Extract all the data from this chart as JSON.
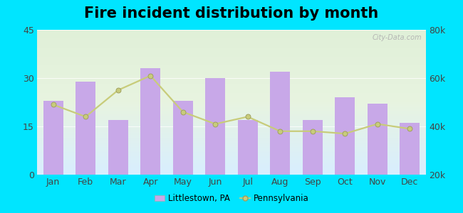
{
  "title": "Fire incident distribution by month",
  "months": [
    "Jan",
    "Feb",
    "Mar",
    "Apr",
    "May",
    "Jun",
    "Jul",
    "Aug",
    "Sep",
    "Oct",
    "Nov",
    "Dec"
  ],
  "bar_values": [
    23,
    29,
    17,
    33,
    23,
    30,
    17,
    32,
    17,
    24,
    22,
    16
  ],
  "line_values": [
    49000,
    44000,
    55000,
    61000,
    46000,
    41000,
    44000,
    38000,
    38000,
    37000,
    41000,
    39000
  ],
  "bar_color": "#c8a8e8",
  "line_color": "#c8cc7a",
  "line_marker": "o",
  "background_outer": "#00e5ff",
  "background_inner_top": "#e0f0d8",
  "background_inner_bottom": "#d8eeff",
  "left_ylim": [
    0,
    45
  ],
  "left_yticks": [
    0,
    15,
    30,
    45
  ],
  "right_ylim": [
    20000,
    80000
  ],
  "right_yticks": [
    20000,
    40000,
    60000,
    80000
  ],
  "right_yticklabels": [
    "20k",
    "40k",
    "60k",
    "80k"
  ],
  "title_fontsize": 15,
  "tick_fontsize": 9,
  "legend_bar_label": "Littlestown, PA",
  "legend_line_label": "Pennsylvania",
  "watermark": "City-Data.com"
}
